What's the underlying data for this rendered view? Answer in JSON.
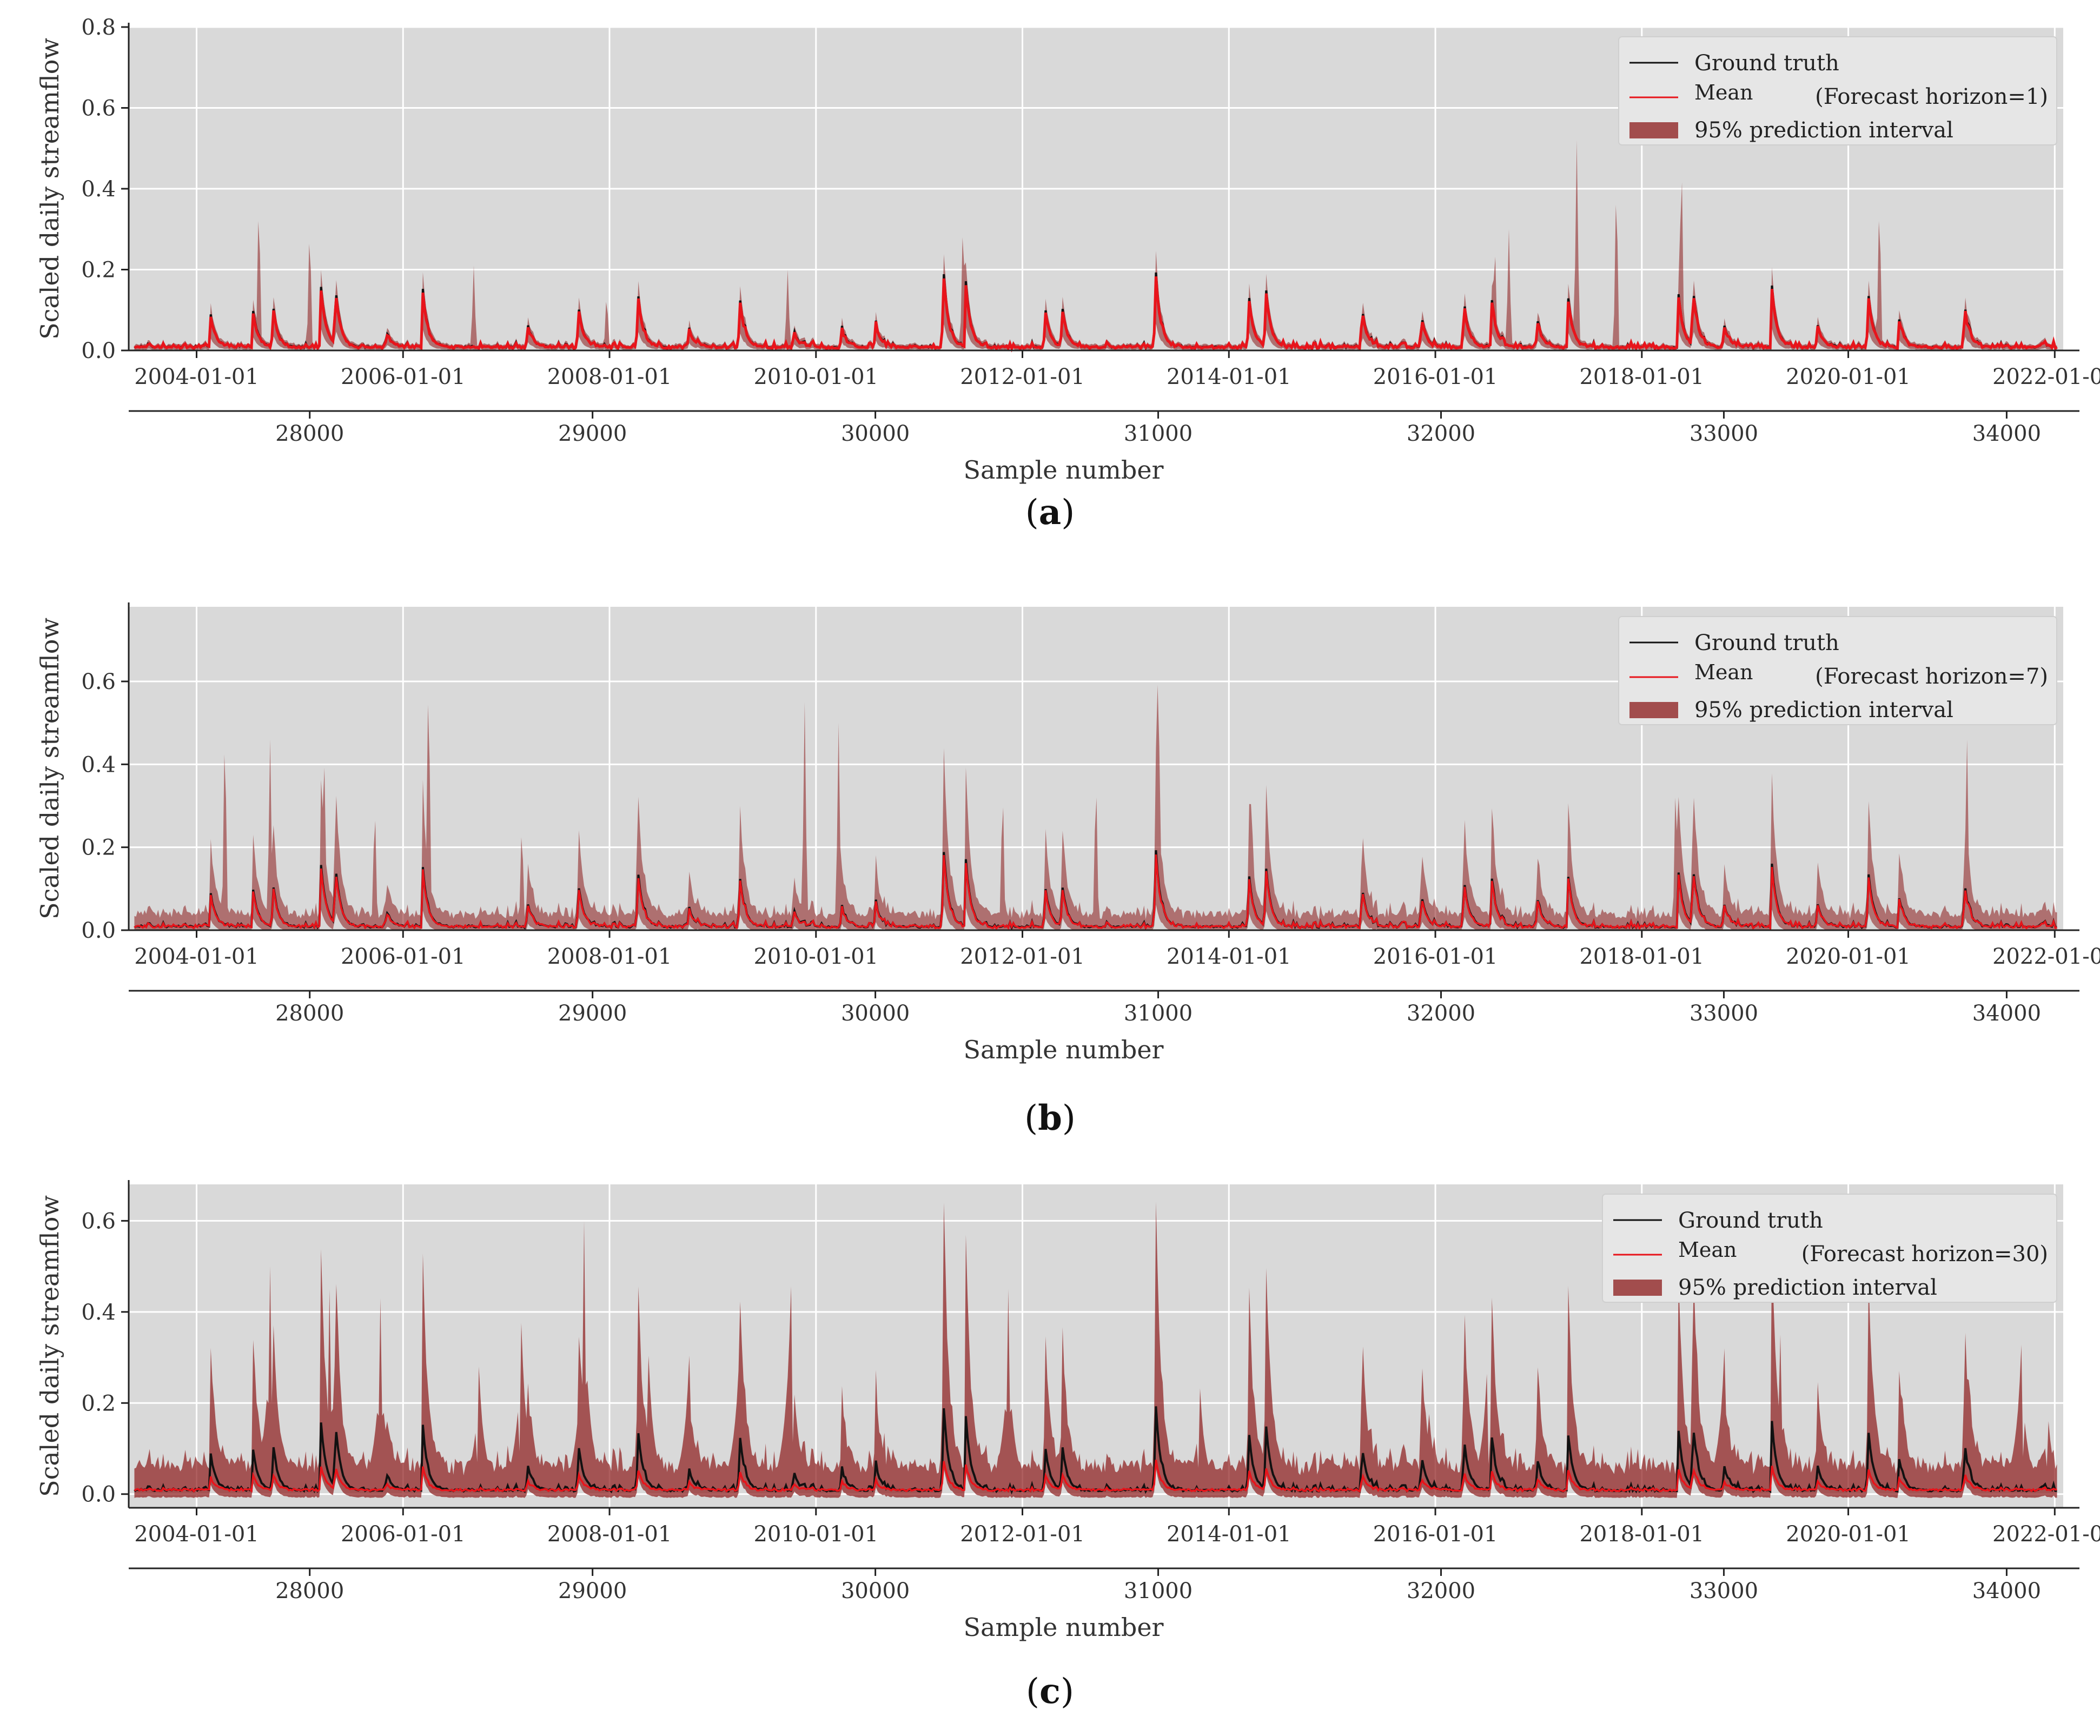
{
  "chart_data": [
    {
      "type": "line",
      "panel_label": "a",
      "ylabel": "Scaled daily streamflow",
      "xlabel": "Sample number",
      "ylim": [
        0,
        0.8
      ],
      "yticks": [
        "0.0",
        "0.2",
        "0.4",
        "0.6",
        "0.8"
      ],
      "ytick_values": [
        0,
        0.2,
        0.4,
        0.6,
        0.8
      ],
      "xlim": [
        27360,
        34200
      ],
      "date_ticks": [
        "2004-01-01",
        "2006-01-01",
        "2008-01-01",
        "2010-01-01",
        "2012-01-01",
        "2014-01-01",
        "2016-01-01",
        "2018-01-01",
        "2020-01-01",
        "2022-01-01"
      ],
      "date_tick_positions": [
        27600,
        28330,
        29060,
        29790,
        30520,
        31250,
        31980,
        32710,
        33440,
        34170
      ],
      "sample_ticks": [
        "28000",
        "29000",
        "30000",
        "31000",
        "32000",
        "33000",
        "34000"
      ],
      "sample_tick_values": [
        28000,
        29000,
        30000,
        31000,
        32000,
        33000,
        34000
      ],
      "legend": {
        "ground_truth": "Ground truth",
        "mean": "Mean",
        "horizon": "(Forecast horizon=1)",
        "interval": "95% prediction interval"
      },
      "interval_scale": 1.25,
      "interval_floor": 0.004,
      "mean_offset": 0.0,
      "extra_spikes": [
        [
          27820,
          0.4
        ],
        [
          28000,
          0.33
        ],
        [
          28580,
          0.21
        ],
        [
          29050,
          0.15
        ],
        [
          29690,
          0.2
        ],
        [
          30310,
          0.35
        ],
        [
          31330,
          0.14
        ],
        [
          32190,
          0.29
        ],
        [
          32240,
          0.3
        ],
        [
          32480,
          0.52
        ],
        [
          32620,
          0.45
        ],
        [
          32850,
          0.52
        ],
        [
          33550,
          0.4
        ]
      ],
      "colors": {
        "background": "#d9d9d9",
        "grid": "#ffffff",
        "truth": "#111111",
        "mean": "#e8141b",
        "interval": "#8b1a1a",
        "interval_opacity": 0.55
      }
    },
    {
      "type": "line",
      "panel_label": "b",
      "ylabel": "Scaled daily streamflow",
      "xlabel": "Sample number",
      "ylim": [
        0,
        0.78
      ],
      "yticks": [
        "0.0",
        "0.2",
        "0.4",
        "0.6"
      ],
      "ytick_values": [
        0,
        0.2,
        0.4,
        0.6
      ],
      "xlim": [
        27360,
        34200
      ],
      "date_ticks": [
        "2004-01-01",
        "2006-01-01",
        "2008-01-01",
        "2010-01-01",
        "2012-01-01",
        "2014-01-01",
        "2016-01-01",
        "2018-01-01",
        "2020-01-01",
        "2022-01-01"
      ],
      "date_tick_positions": [
        27600,
        28330,
        29060,
        29790,
        30520,
        31250,
        31980,
        32710,
        33440,
        34170
      ],
      "sample_ticks": [
        "28000",
        "29000",
        "30000",
        "31000",
        "32000",
        "33000",
        "34000"
      ],
      "sample_tick_values": [
        28000,
        29000,
        30000,
        31000,
        32000,
        33000,
        34000
      ],
      "legend": {
        "ground_truth": "Ground truth",
        "mean": "Mean",
        "horizon": "(Forecast horizon=7)",
        "interval": "95% prediction interval"
      },
      "interval_scale": 2.2,
      "interval_floor": 0.02,
      "mean_offset": 0.005,
      "extra_spikes": [
        [
          27700,
          0.53
        ],
        [
          27860,
          0.46
        ],
        [
          28050,
          0.49
        ],
        [
          28230,
          0.33
        ],
        [
          28420,
          0.68
        ],
        [
          28750,
          0.28
        ],
        [
          29160,
          0.3
        ],
        [
          29750,
          0.55
        ],
        [
          29870,
          0.5
        ],
        [
          30450,
          0.37
        ],
        [
          30780,
          0.4
        ],
        [
          31000,
          0.74
        ],
        [
          31330,
          0.38
        ],
        [
          32830,
          0.4
        ],
        [
          33170,
          0.27
        ],
        [
          33860,
          0.46
        ]
      ],
      "colors": {
        "background": "#d9d9d9",
        "grid": "#ffffff",
        "truth": "#111111",
        "mean": "#e8141b",
        "interval": "#8b1a1a",
        "interval_opacity": 0.55
      }
    },
    {
      "type": "line",
      "panel_label": "c",
      "ylabel": "Scaled daily streamflow",
      "xlabel": "Sample number",
      "ylim": [
        -0.03,
        0.68
      ],
      "yticks": [
        "0.0",
        "0.2",
        "0.4",
        "0.6"
      ],
      "ytick_values": [
        0,
        0.2,
        0.4,
        0.6
      ],
      "xlim": [
        27360,
        34200
      ],
      "date_ticks": [
        "2004-01-01",
        "2006-01-01",
        "2008-01-01",
        "2010-01-01",
        "2012-01-01",
        "2014-01-01",
        "2016-01-01",
        "2018-01-01",
        "2020-01-01",
        "2022-01-01"
      ],
      "date_tick_positions": [
        27600,
        28330,
        29060,
        29790,
        30520,
        31250,
        31980,
        32710,
        33440,
        34170
      ],
      "sample_ticks": [
        "28000",
        "29000",
        "30000",
        "31000",
        "32000",
        "33000",
        "34000"
      ],
      "sample_tick_values": [
        28000,
        29000,
        30000,
        31000,
        32000,
        33000,
        34000
      ],
      "legend": {
        "ground_truth": "Ground truth",
        "mean": "Mean",
        "horizon": "(Forecast horizon=30)",
        "interval": "95% prediction interval"
      },
      "interval_scale": 3.2,
      "interval_floor": 0.035,
      "mean_offset": -0.02,
      "extra_spikes": [
        [
          27860,
          0.5
        ],
        [
          28070,
          0.45
        ],
        [
          28250,
          0.43
        ],
        [
          28600,
          0.35
        ],
        [
          28750,
          0.47
        ],
        [
          28970,
          0.6
        ],
        [
          29200,
          0.38
        ],
        [
          29340,
          0.38
        ],
        [
          29520,
          0.45
        ],
        [
          29700,
          0.57
        ],
        [
          30470,
          0.45
        ],
        [
          31150,
          0.29
        ],
        [
          31960,
          0.22
        ],
        [
          32160,
          0.33
        ],
        [
          33000,
          0.4
        ],
        [
          33200,
          0.35
        ],
        [
          34050,
          0.41
        ],
        [
          34150,
          0.2
        ]
      ],
      "colors": {
        "background": "#d9d9d9",
        "grid": "#ffffff",
        "truth": "#111111",
        "mean": "#e8141b",
        "interval": "#8b1a1a",
        "interval_opacity": 0.7
      }
    }
  ],
  "ground_truth_peaks": [
    [
      27650,
      0.08
    ],
    [
      27800,
      0.09
    ],
    [
      27870,
      0.1
    ],
    [
      28040,
      0.15
    ],
    [
      28090,
      0.15
    ],
    [
      28270,
      0.04
    ],
    [
      28400,
      0.14
    ],
    [
      28770,
      0.06
    ],
    [
      28950,
      0.1
    ],
    [
      29160,
      0.14
    ],
    [
      29340,
      0.05
    ],
    [
      29520,
      0.13
    ],
    [
      29710,
      0.04
    ],
    [
      29880,
      0.05
    ],
    [
      30000,
      0.06
    ],
    [
      30240,
      0.2
    ],
    [
      30320,
      0.16
    ],
    [
      30600,
      0.1
    ],
    [
      30660,
      0.1
    ],
    [
      30990,
      0.2
    ],
    [
      31320,
      0.13
    ],
    [
      31380,
      0.15
    ],
    [
      31720,
      0.1
    ],
    [
      31930,
      0.08
    ],
    [
      32080,
      0.12
    ],
    [
      32180,
      0.11
    ],
    [
      32340,
      0.07
    ],
    [
      32450,
      0.12
    ],
    [
      32840,
      0.13
    ],
    [
      32890,
      0.15
    ],
    [
      33000,
      0.06
    ],
    [
      33170,
      0.15
    ],
    [
      33330,
      0.06
    ],
    [
      33510,
      0.14
    ],
    [
      33620,
      0.07
    ],
    [
      33850,
      0.11
    ],
    [
      34120,
      0.01
    ]
  ],
  "captions": [
    "a",
    "b",
    "c"
  ]
}
